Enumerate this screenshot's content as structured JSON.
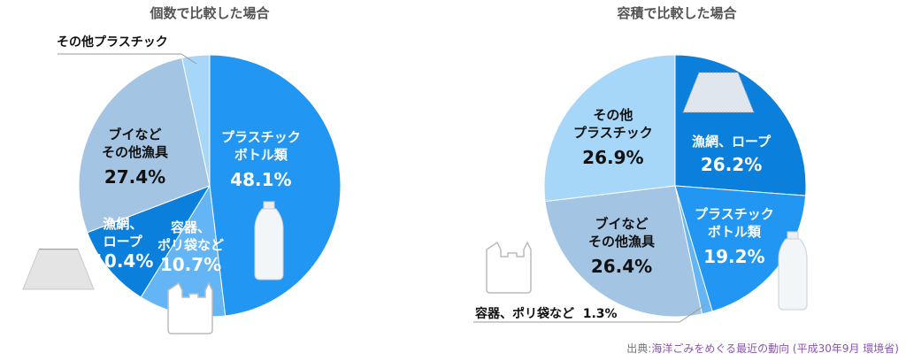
{
  "chart_data": [
    {
      "type": "pie",
      "title": "個数で比較した場合",
      "slices": [
        {
          "name": "プラスチックボトル類",
          "line1": "プラスチック",
          "line2": "ボトル類",
          "value": 48.1,
          "label": "48.1%",
          "color": "#2196f3"
        },
        {
          "name": "容器、ポリ袋など",
          "line1": "容器、",
          "line2": "ポリ袋など",
          "value": 10.7,
          "label": "10.7%",
          "color": "#64b5f6"
        },
        {
          "name": "漁網、ロープ",
          "line1": "漁網、",
          "line2": "ロープ",
          "value": 10.4,
          "label": "10.4%",
          "color": "#0b7fdc"
        },
        {
          "name": "ブイなどその他漁具",
          "line1": "ブイなど",
          "line2": "その他漁具",
          "value": 27.4,
          "label": "27.4%",
          "color": "#a3c5e3"
        },
        {
          "name": "その他プラスチック",
          "line1": "その他プラスチック",
          "value": 3.4,
          "color": "#a6d6f8"
        }
      ]
    },
    {
      "type": "pie",
      "title": "容積で比較した場合",
      "slices": [
        {
          "name": "漁網、ロープ",
          "line1": "漁網、ロープ",
          "value": 26.2,
          "label": "26.2%",
          "color": "#0b7fdc"
        },
        {
          "name": "プラスチックボトル類",
          "line1": "プラスチック",
          "line2": "ボトル類",
          "value": 19.2,
          "label": "19.2%",
          "color": "#2196f3"
        },
        {
          "name": "容器、ポリ袋など",
          "line1": "容器、ポリ袋など",
          "value": 1.3,
          "label": "1.3%",
          "color": "#64b5f6"
        },
        {
          "name": "ブイなどその他漁具",
          "line1": "ブイなど",
          "line2": "その他漁具",
          "value": 26.4,
          "label": "26.4%",
          "color": "#a3c5e3"
        },
        {
          "name": "その他プラスチック",
          "line1": "その他",
          "line2": "プラスチック",
          "value": 26.9,
          "label": "26.9%",
          "color": "#a6d6f8"
        }
      ]
    }
  ],
  "source": {
    "prefix": "出典:",
    "link": "海洋ごみをめぐる最近の動向",
    "suffix": " (平成30年9月 環境省)"
  }
}
